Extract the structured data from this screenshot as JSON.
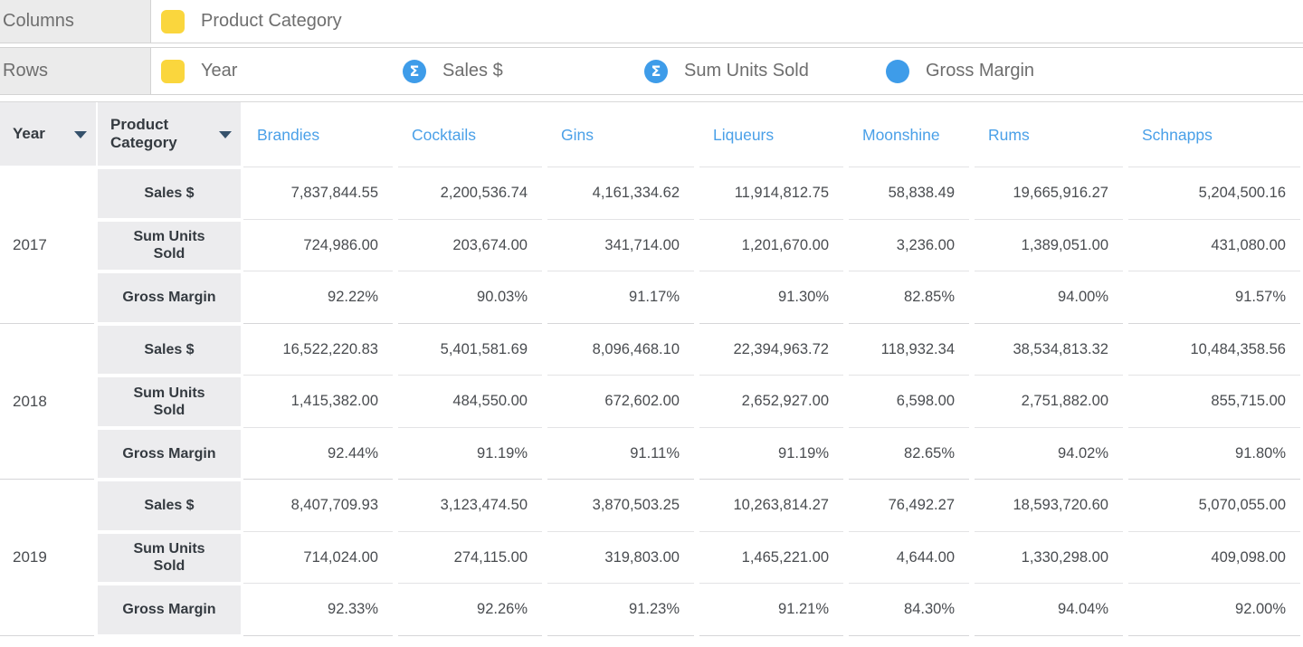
{
  "colors": {
    "pill_yellow": "#FAD63D",
    "pill_blue": "#3E9CE9",
    "header_blue": "#4AA0E8",
    "cell_gray": "#ECECEE"
  },
  "shelves": {
    "columns": {
      "label": "Columns",
      "pills": [
        {
          "type": "dimension",
          "label": "Product Category"
        }
      ]
    },
    "rows": {
      "label": "Rows",
      "pills": [
        {
          "type": "dimension",
          "label": "Year"
        },
        {
          "type": "sum",
          "label": "Sales $"
        },
        {
          "type": "sum",
          "label": "Sum Units Sold"
        },
        {
          "type": "measure",
          "label": "Gross Margin"
        }
      ]
    }
  },
  "table": {
    "row_headers": [
      {
        "label": "Year"
      },
      {
        "label": "Product Category"
      }
    ],
    "columns": [
      "Brandies",
      "Cocktails",
      "Gins",
      "Liqueurs",
      "Moonshine",
      "Rums",
      "Schnapps"
    ],
    "groups": [
      {
        "year": "2017",
        "rows": [
          {
            "measure": "Sales $",
            "values": [
              "7,837,844.55",
              "2,200,536.74",
              "4,161,334.62",
              "11,914,812.75",
              "58,838.49",
              "19,665,916.27",
              "5,204,500.16"
            ]
          },
          {
            "measure": "Sum Units Sold",
            "values": [
              "724,986.00",
              "203,674.00",
              "341,714.00",
              "1,201,670.00",
              "3,236.00",
              "1,389,051.00",
              "431,080.00"
            ]
          },
          {
            "measure": "Gross Margin",
            "values": [
              "92.22%",
              "90.03%",
              "91.17%",
              "91.30%",
              "82.85%",
              "94.00%",
              "91.57%"
            ]
          }
        ]
      },
      {
        "year": "2018",
        "rows": [
          {
            "measure": "Sales $",
            "values": [
              "16,522,220.83",
              "5,401,581.69",
              "8,096,468.10",
              "22,394,963.72",
              "118,932.34",
              "38,534,813.32",
              "10,484,358.56"
            ]
          },
          {
            "measure": "Sum Units Sold",
            "values": [
              "1,415,382.00",
              "484,550.00",
              "672,602.00",
              "2,652,927.00",
              "6,598.00",
              "2,751,882.00",
              "855,715.00"
            ]
          },
          {
            "measure": "Gross Margin",
            "values": [
              "92.44%",
              "91.19%",
              "91.11%",
              "91.19%",
              "82.65%",
              "94.02%",
              "91.80%"
            ]
          }
        ]
      },
      {
        "year": "2019",
        "rows": [
          {
            "measure": "Sales $",
            "values": [
              "8,407,709.93",
              "3,123,474.50",
              "3,870,503.25",
              "10,263,814.27",
              "76,492.27",
              "18,593,720.60",
              "5,070,055.00"
            ]
          },
          {
            "measure": "Sum Units Sold",
            "values": [
              "714,024.00",
              "274,115.00",
              "319,803.00",
              "1,465,221.00",
              "4,644.00",
              "1,330,298.00",
              "409,098.00"
            ]
          },
          {
            "measure": "Gross Margin",
            "values": [
              "92.33%",
              "92.26%",
              "91.23%",
              "91.21%",
              "84.30%",
              "94.04%",
              "92.00%"
            ]
          }
        ]
      }
    ]
  }
}
